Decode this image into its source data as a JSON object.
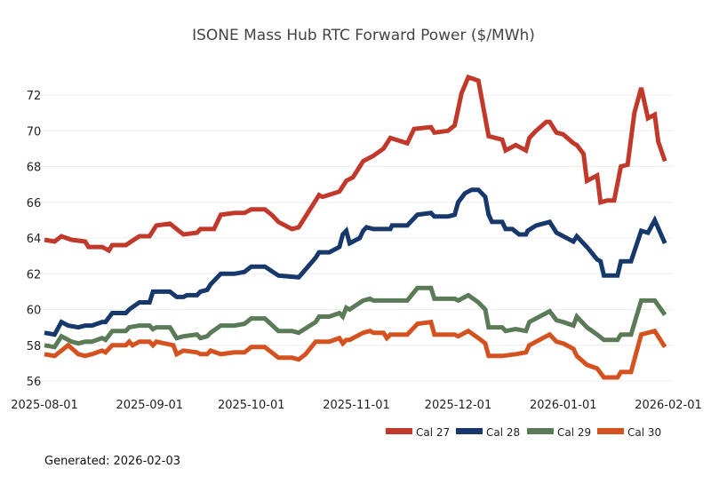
{
  "chart_data": {
    "type": "line",
    "title": "ISONE Mass Hub RTC Forward Power ($/MWh)",
    "xlabel": "",
    "ylabel": "",
    "x_start_date": "2025-08-01",
    "x_unit": "days since 2025-08-01",
    "xlim": [
      0,
      184
    ],
    "ylim": [
      55.5,
      73.6
    ],
    "yticks": [
      56,
      58,
      60,
      62,
      64,
      66,
      68,
      70,
      72
    ],
    "xticks": [
      {
        "day": 0,
        "label": "2025-08-01"
      },
      {
        "day": 31,
        "label": "2025-09-01"
      },
      {
        "day": 61,
        "label": "2025-10-01"
      },
      {
        "day": 92,
        "label": "2025-11-01"
      },
      {
        "day": 122,
        "label": "2025-12-01"
      },
      {
        "day": 153,
        "label": "2026-01-01"
      },
      {
        "day": 184,
        "label": "2026-02-01"
      }
    ],
    "grid": true,
    "legend_position": "bottom-right",
    "series": [
      {
        "name": "Cal 27",
        "color": "#c0392b",
        "points": [
          [
            0,
            63.9
          ],
          [
            3,
            63.8
          ],
          [
            5,
            64.1
          ],
          [
            8,
            63.9
          ],
          [
            12,
            63.8
          ],
          [
            13,
            63.5
          ],
          [
            17,
            63.5
          ],
          [
            19,
            63.3
          ],
          [
            20,
            63.6
          ],
          [
            24,
            63.6
          ],
          [
            28,
            64.1
          ],
          [
            31,
            64.1
          ],
          [
            33,
            64.7
          ],
          [
            37,
            64.8
          ],
          [
            39,
            64.5
          ],
          [
            41,
            64.2
          ],
          [
            45,
            64.3
          ],
          [
            46,
            64.5
          ],
          [
            50,
            64.5
          ],
          [
            52,
            65.3
          ],
          [
            56,
            65.4
          ],
          [
            59,
            65.4
          ],
          [
            61,
            65.6
          ],
          [
            65,
            65.6
          ],
          [
            67,
            65.3
          ],
          [
            69,
            64.9
          ],
          [
            73,
            64.5
          ],
          [
            75,
            64.6
          ],
          [
            81,
            66.4
          ],
          [
            82,
            66.3
          ],
          [
            87,
            66.6
          ],
          [
            89,
            67.2
          ],
          [
            91,
            67.4
          ],
          [
            94,
            68.3
          ],
          [
            97,
            68.6
          ],
          [
            100,
            69.0
          ],
          [
            102,
            69.6
          ],
          [
            107,
            69.3
          ],
          [
            109,
            70.1
          ],
          [
            114,
            70.2
          ],
          [
            115,
            69.9
          ],
          [
            119,
            70.0
          ],
          [
            121,
            70.3
          ],
          [
            123,
            72.1
          ],
          [
            125,
            73.0
          ],
          [
            128,
            72.8
          ],
          [
            131,
            69.7
          ],
          [
            135,
            69.5
          ],
          [
            136,
            68.9
          ],
          [
            139,
            69.2
          ],
          [
            142,
            68.9
          ],
          [
            143,
            69.6
          ],
          [
            145,
            70.0
          ],
          [
            148,
            70.5
          ],
          [
            149,
            70.5
          ],
          [
            151,
            69.9
          ],
          [
            153,
            69.8
          ],
          [
            156,
            69.3
          ],
          [
            157,
            69.2
          ],
          [
            159,
            68.7
          ],
          [
            160,
            67.2
          ],
          [
            163,
            67.5
          ],
          [
            164,
            66.0
          ],
          [
            166,
            66.1
          ],
          [
            168,
            66.1
          ],
          [
            170,
            68.0
          ],
          [
            172,
            68.1
          ],
          [
            174,
            71.0
          ],
          [
            176,
            72.4
          ],
          [
            178,
            70.7
          ],
          [
            180,
            70.9
          ],
          [
            181,
            69.4
          ],
          [
            183,
            68.3
          ]
        ]
      },
      {
        "name": "Cal 28",
        "color": "#17386b",
        "points": [
          [
            0,
            58.7
          ],
          [
            3,
            58.6
          ],
          [
            5,
            59.3
          ],
          [
            7,
            59.1
          ],
          [
            10,
            59.0
          ],
          [
            12,
            59.1
          ],
          [
            14,
            59.1
          ],
          [
            17,
            59.3
          ],
          [
            18,
            59.3
          ],
          [
            20,
            59.8
          ],
          [
            24,
            59.8
          ],
          [
            25,
            60.0
          ],
          [
            28,
            60.4
          ],
          [
            31,
            60.4
          ],
          [
            32,
            61.0
          ],
          [
            37,
            61.0
          ],
          [
            39,
            60.7
          ],
          [
            41,
            60.7
          ],
          [
            42,
            60.8
          ],
          [
            45,
            60.8
          ],
          [
            46,
            61.0
          ],
          [
            48,
            61.1
          ],
          [
            49,
            61.4
          ],
          [
            52,
            62.0
          ],
          [
            56,
            62.0
          ],
          [
            59,
            62.1
          ],
          [
            61,
            62.4
          ],
          [
            65,
            62.4
          ],
          [
            69,
            61.9
          ],
          [
            75,
            61.8
          ],
          [
            80,
            62.9
          ],
          [
            81,
            63.2
          ],
          [
            84,
            63.2
          ],
          [
            87,
            63.5
          ],
          [
            88,
            64.2
          ],
          [
            89,
            64.4
          ],
          [
            90,
            63.7
          ],
          [
            93,
            64.0
          ],
          [
            94,
            64.4
          ],
          [
            95,
            64.6
          ],
          [
            97,
            64.5
          ],
          [
            102,
            64.5
          ],
          [
            102.5,
            64.7
          ],
          [
            107,
            64.7
          ],
          [
            110,
            65.3
          ],
          [
            114,
            65.4
          ],
          [
            115,
            65.2
          ],
          [
            119,
            65.2
          ],
          [
            121,
            65.3
          ],
          [
            122,
            66.0
          ],
          [
            124,
            66.5
          ],
          [
            126,
            66.7
          ],
          [
            128,
            66.7
          ],
          [
            130,
            66.3
          ],
          [
            131,
            65.3
          ],
          [
            132,
            64.9
          ],
          [
            135,
            64.9
          ],
          [
            136,
            64.5
          ],
          [
            138,
            64.5
          ],
          [
            140,
            64.2
          ],
          [
            142,
            64.2
          ],
          [
            142.5,
            64.4
          ],
          [
            145,
            64.7
          ],
          [
            149,
            64.9
          ],
          [
            151,
            64.3
          ],
          [
            153,
            64.1
          ],
          [
            156,
            63.8
          ],
          [
            157,
            64.1
          ],
          [
            160,
            63.5
          ],
          [
            163,
            62.8
          ],
          [
            164,
            62.7
          ],
          [
            165,
            61.9
          ],
          [
            169,
            61.9
          ],
          [
            170,
            62.7
          ],
          [
            173,
            62.7
          ],
          [
            176,
            64.4
          ],
          [
            178,
            64.3
          ],
          [
            180,
            65.0
          ],
          [
            183,
            63.7
          ]
        ]
      },
      {
        "name": "Cal 29",
        "color": "#5a7a58",
        "points": [
          [
            0,
            58.0
          ],
          [
            3,
            57.9
          ],
          [
            5,
            58.5
          ],
          [
            8,
            58.2
          ],
          [
            10,
            58.1
          ],
          [
            12,
            58.2
          ],
          [
            14,
            58.2
          ],
          [
            17,
            58.4
          ],
          [
            18,
            58.3
          ],
          [
            20,
            58.8
          ],
          [
            24,
            58.8
          ],
          [
            25,
            59.0
          ],
          [
            28,
            59.1
          ],
          [
            31,
            59.1
          ],
          [
            32,
            58.9
          ],
          [
            33,
            59.0
          ],
          [
            37,
            59.0
          ],
          [
            39,
            58.4
          ],
          [
            41,
            58.5
          ],
          [
            45,
            58.6
          ],
          [
            46,
            58.4
          ],
          [
            48,
            58.5
          ],
          [
            49,
            58.7
          ],
          [
            52,
            59.1
          ],
          [
            56,
            59.1
          ],
          [
            59,
            59.2
          ],
          [
            61,
            59.5
          ],
          [
            65,
            59.5
          ],
          [
            69,
            58.8
          ],
          [
            73,
            58.8
          ],
          [
            75,
            58.7
          ],
          [
            80,
            59.3
          ],
          [
            81,
            59.6
          ],
          [
            84,
            59.6
          ],
          [
            87,
            59.8
          ],
          [
            88,
            59.6
          ],
          [
            89,
            60.1
          ],
          [
            90,
            60.0
          ],
          [
            94,
            60.5
          ],
          [
            96,
            60.6
          ],
          [
            97,
            60.5
          ],
          [
            101,
            60.5
          ],
          [
            102,
            60.5
          ],
          [
            107,
            60.5
          ],
          [
            110,
            61.2
          ],
          [
            114,
            61.2
          ],
          [
            115,
            60.6
          ],
          [
            121,
            60.6
          ],
          [
            122,
            60.5
          ],
          [
            123,
            60.6
          ],
          [
            125,
            60.8
          ],
          [
            128,
            60.4
          ],
          [
            130,
            60.0
          ],
          [
            131,
            59.0
          ],
          [
            135,
            59.0
          ],
          [
            136,
            58.8
          ],
          [
            139,
            58.9
          ],
          [
            142,
            58.8
          ],
          [
            143,
            59.3
          ],
          [
            147,
            59.7
          ],
          [
            149,
            59.9
          ],
          [
            151,
            59.4
          ],
          [
            153,
            59.3
          ],
          [
            156,
            59.1
          ],
          [
            157,
            59.6
          ],
          [
            160,
            59.0
          ],
          [
            163,
            58.6
          ],
          [
            165,
            58.3
          ],
          [
            169,
            58.3
          ],
          [
            170,
            58.6
          ],
          [
            173,
            58.6
          ],
          [
            176,
            60.5
          ],
          [
            178,
            60.5
          ],
          [
            180,
            60.5
          ],
          [
            183,
            59.7
          ]
        ]
      },
      {
        "name": "Cal 30",
        "color": "#d4521f",
        "points": [
          [
            0,
            57.5
          ],
          [
            3,
            57.4
          ],
          [
            5,
            57.7
          ],
          [
            7,
            58.0
          ],
          [
            10,
            57.5
          ],
          [
            12,
            57.4
          ],
          [
            14,
            57.5
          ],
          [
            17,
            57.7
          ],
          [
            18,
            57.6
          ],
          [
            20,
            58.0
          ],
          [
            24,
            58.0
          ],
          [
            25,
            58.2
          ],
          [
            26,
            58.0
          ],
          [
            28,
            58.2
          ],
          [
            31,
            58.2
          ],
          [
            32,
            58.0
          ],
          [
            33,
            58.2
          ],
          [
            38,
            58.0
          ],
          [
            39,
            57.5
          ],
          [
            41,
            57.7
          ],
          [
            45,
            57.6
          ],
          [
            46,
            57.5
          ],
          [
            48,
            57.5
          ],
          [
            49,
            57.7
          ],
          [
            52,
            57.5
          ],
          [
            56,
            57.6
          ],
          [
            59,
            57.6
          ],
          [
            61,
            57.9
          ],
          [
            65,
            57.9
          ],
          [
            69,
            57.3
          ],
          [
            73,
            57.3
          ],
          [
            75,
            57.2
          ],
          [
            77,
            57.5
          ],
          [
            80,
            58.2
          ],
          [
            84,
            58.2
          ],
          [
            87,
            58.4
          ],
          [
            88,
            58.1
          ],
          [
            89,
            58.3
          ],
          [
            90,
            58.3
          ],
          [
            94,
            58.7
          ],
          [
            96,
            58.8
          ],
          [
            97,
            58.7
          ],
          [
            100,
            58.7
          ],
          [
            101,
            58.4
          ],
          [
            102,
            58.6
          ],
          [
            107,
            58.6
          ],
          [
            110,
            59.2
          ],
          [
            114,
            59.3
          ],
          [
            115,
            58.6
          ],
          [
            121,
            58.6
          ],
          [
            122,
            58.5
          ],
          [
            123,
            58.6
          ],
          [
            125,
            58.8
          ],
          [
            128,
            58.4
          ],
          [
            130,
            58.1
          ],
          [
            131,
            57.4
          ],
          [
            135,
            57.4
          ],
          [
            139,
            57.5
          ],
          [
            142,
            57.6
          ],
          [
            143,
            58.0
          ],
          [
            147,
            58.4
          ],
          [
            149,
            58.6
          ],
          [
            151,
            58.2
          ],
          [
            153,
            58.1
          ],
          [
            156,
            57.8
          ],
          [
            157,
            57.4
          ],
          [
            160,
            56.9
          ],
          [
            163,
            56.7
          ],
          [
            165,
            56.2
          ],
          [
            169,
            56.2
          ],
          [
            170,
            56.5
          ],
          [
            173,
            56.5
          ],
          [
            176,
            58.6
          ],
          [
            178,
            58.7
          ],
          [
            180,
            58.8
          ],
          [
            183,
            57.9
          ]
        ]
      }
    ]
  },
  "footer": {
    "generated": "Generated: 2026-02-03"
  }
}
